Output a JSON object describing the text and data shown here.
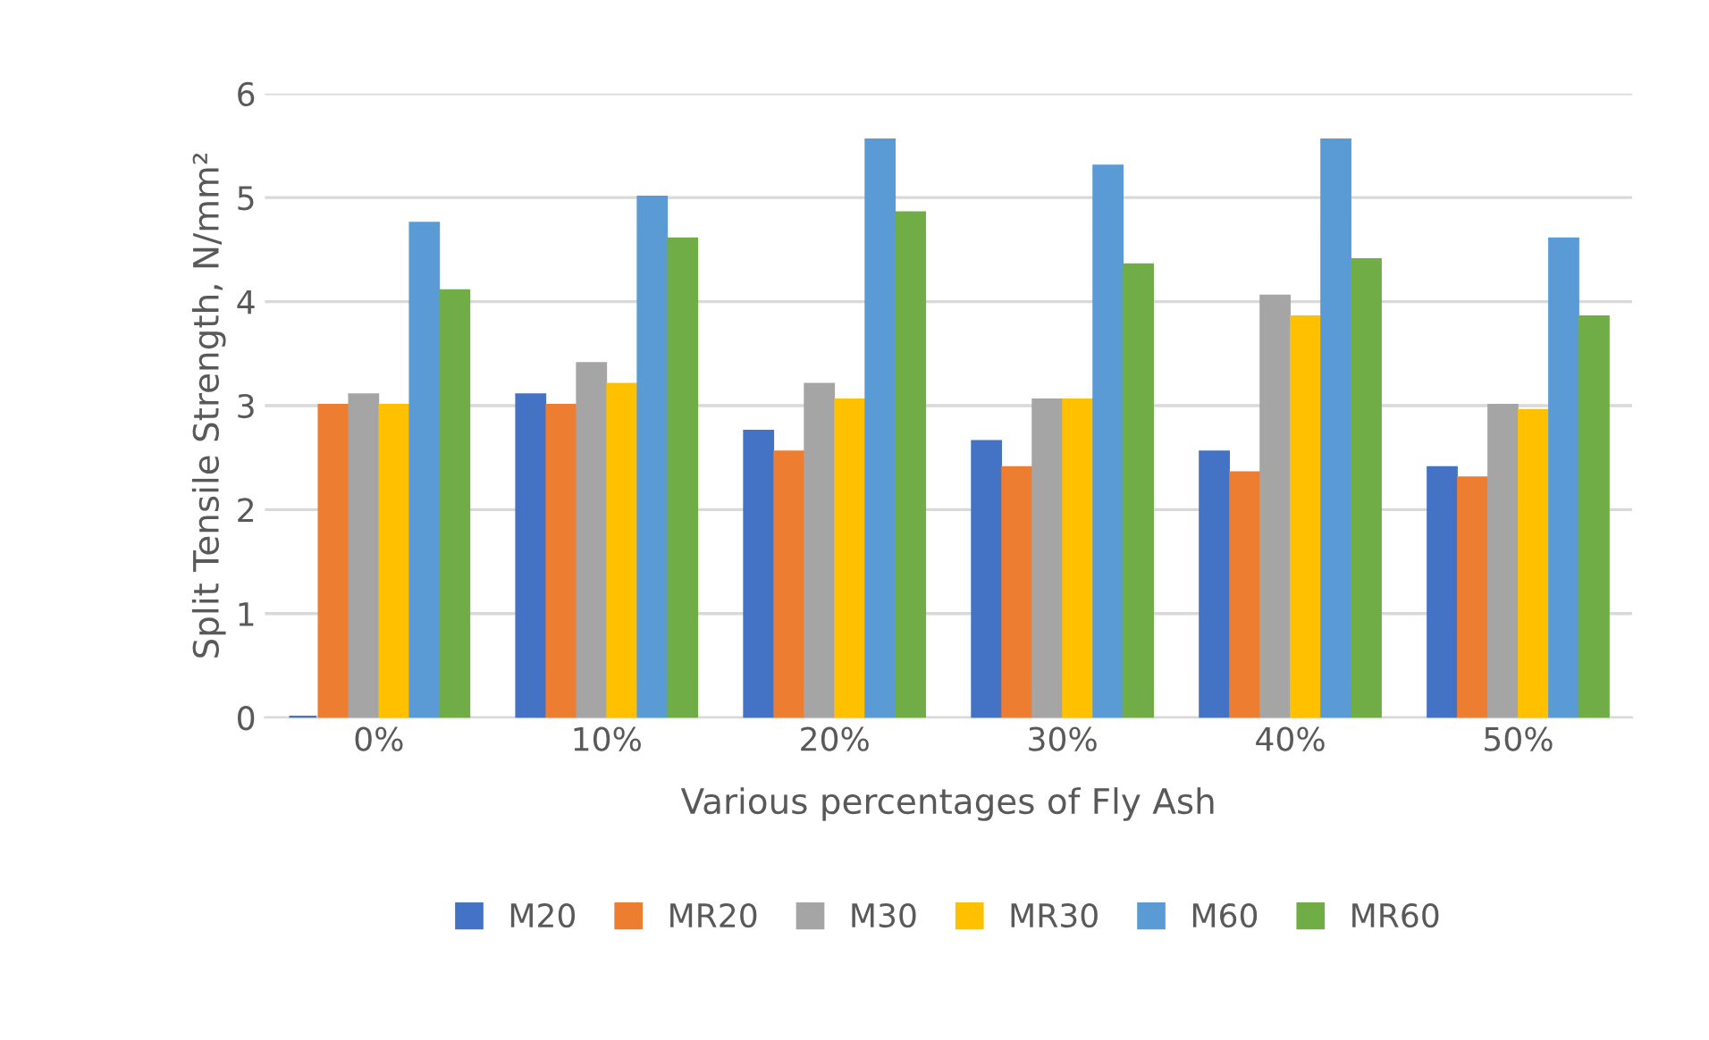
{
  "chart_data": {
    "type": "bar",
    "xlabel": "Various percentages of Fly Ash",
    "ylabel": "Split Tensile Strength, N/mm²",
    "categories": [
      "0%",
      "10%",
      "20%",
      "30%",
      "40%",
      "50%"
    ],
    "series": [
      {
        "name": "M20",
        "color": "#4472c4",
        "values": [
          0,
          3.1,
          2.75,
          2.65,
          2.55,
          2.4
        ]
      },
      {
        "name": "MR20",
        "color": "#ed7d31",
        "values": [
          3.0,
          3.0,
          2.55,
          2.4,
          2.35,
          2.3
        ]
      },
      {
        "name": "M30",
        "color": "#a5a5a5",
        "values": [
          3.1,
          3.4,
          3.2,
          3.05,
          4.05,
          3.0
        ]
      },
      {
        "name": "MR30",
        "color": "#ffc000",
        "values": [
          3.0,
          3.2,
          3.05,
          3.05,
          3.85,
          2.95
        ]
      },
      {
        "name": "M60",
        "color": "#5b9bd5",
        "values": [
          4.75,
          5.0,
          5.55,
          5.3,
          5.55,
          4.6
        ]
      },
      {
        "name": "MR60",
        "color": "#70ad47",
        "values": [
          4.1,
          4.6,
          4.85,
          4.35,
          4.4,
          3.85
        ]
      }
    ],
    "ylim": [
      0,
      6
    ],
    "yticks": [
      0,
      1,
      2,
      3,
      4,
      5,
      6
    ],
    "grid": "y",
    "legend": "bottom"
  }
}
